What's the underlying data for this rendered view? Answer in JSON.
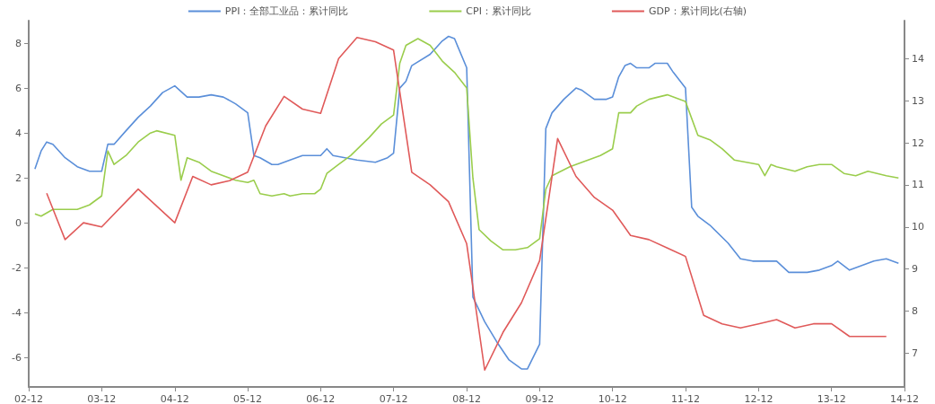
{
  "chart_data": {
    "type": "line",
    "xlim": [
      "2002-12",
      "2014-12"
    ],
    "xticks": [
      {
        "value": "2002-12",
        "label": "02-12"
      },
      {
        "value": "2003-12",
        "label": "03-12"
      },
      {
        "value": "2004-12",
        "label": "04-12"
      },
      {
        "value": "2005-12",
        "label": "05-12"
      },
      {
        "value": "2006-12",
        "label": "06-12"
      },
      {
        "value": "2007-12",
        "label": "07-12"
      },
      {
        "value": "2008-12",
        "label": "08-12"
      },
      {
        "value": "2009-12",
        "label": "09-12"
      },
      {
        "value": "2010-12",
        "label": "10-12"
      },
      {
        "value": "2011-12",
        "label": "11-12"
      },
      {
        "value": "2012-12",
        "label": "12-12"
      },
      {
        "value": "2013-12",
        "label": "13-12"
      },
      {
        "value": "2014-12",
        "label": "14-12"
      }
    ],
    "ylim": [
      -7.3,
      9
    ],
    "yticks": [
      -6,
      -4,
      -2,
      0,
      2,
      4,
      6,
      8
    ],
    "y2lim": [
      6.2,
      14.9
    ],
    "y2ticks": [
      7,
      8,
      9,
      10,
      11,
      12,
      13,
      14
    ],
    "legend": "top",
    "grid": false,
    "marker": "none",
    "line_style": "solid",
    "series": [
      {
        "name": "PPI：全部工业品：累计同比",
        "color": "#5b8fd9",
        "x": [
          "2003-01",
          "2003-02",
          "2003-03",
          "2003-04",
          "2003-06",
          "2003-08",
          "2003-10",
          "2003-12",
          "2004-01",
          "2004-02",
          "2004-04",
          "2004-06",
          "2004-08",
          "2004-10",
          "2004-12",
          "2005-02",
          "2005-04",
          "2005-06",
          "2005-08",
          "2005-10",
          "2005-12",
          "2006-01",
          "2006-02",
          "2006-04",
          "2006-05",
          "2006-07",
          "2006-09",
          "2006-12",
          "2007-01",
          "2007-02",
          "2007-06",
          "2007-09",
          "2007-11",
          "2007-12",
          "2008-01",
          "2008-02",
          "2008-03",
          "2008-06",
          "2008-08",
          "2008-09",
          "2008-10",
          "2008-12",
          "2009-01",
          "2009-03",
          "2009-05",
          "2009-07",
          "2009-09",
          "2009-10",
          "2009-12",
          "2010-01",
          "2010-02",
          "2010-04",
          "2010-06",
          "2010-07",
          "2010-09",
          "2010-11",
          "2010-12",
          "2011-01",
          "2011-02",
          "2011-03",
          "2011-04",
          "2011-06",
          "2011-07",
          "2011-09",
          "2011-10",
          "2011-12",
          "2012-01",
          "2012-02",
          "2012-04",
          "2012-07",
          "2012-09",
          "2012-11",
          "2013-01",
          "2013-03",
          "2013-05",
          "2013-08",
          "2013-10",
          "2013-12",
          "2014-01",
          "2014-03",
          "2014-05",
          "2014-07",
          "2014-09",
          "2014-11"
        ],
        "values": [
          2.4,
          3.2,
          3.6,
          3.5,
          2.9,
          2.5,
          2.3,
          2.3,
          3.5,
          3.5,
          4.1,
          4.7,
          5.2,
          5.8,
          6.1,
          5.6,
          5.6,
          5.7,
          5.6,
          5.3,
          4.9,
          3.0,
          2.9,
          2.6,
          2.6,
          2.8,
          3.0,
          3.0,
          3.3,
          3.0,
          2.8,
          2.7,
          2.9,
          3.1,
          6.0,
          6.3,
          7.0,
          7.5,
          8.1,
          8.3,
          8.2,
          6.9,
          -3.3,
          -4.4,
          -5.3,
          -6.1,
          -6.5,
          -6.5,
          -5.4,
          4.2,
          4.9,
          5.5,
          6.0,
          5.9,
          5.5,
          5.5,
          5.6,
          6.5,
          7.0,
          7.1,
          6.9,
          6.9,
          7.1,
          7.1,
          6.7,
          6.0,
          0.7,
          0.3,
          -0.1,
          -0.9,
          -1.6,
          -1.7,
          -1.7,
          -1.7,
          -2.2,
          -2.2,
          -2.1,
          -1.9,
          -1.7,
          -2.1,
          -1.9,
          -1.7,
          -1.6,
          -1.8
        ]
      },
      {
        "name": "CPI：累计同比",
        "color": "#9acd4c",
        "x": [
          "2003-01",
          "2003-02",
          "2003-04",
          "2003-05",
          "2003-08",
          "2003-10",
          "2003-12",
          "2004-01",
          "2004-02",
          "2004-04",
          "2004-06",
          "2004-08",
          "2004-09",
          "2004-12",
          "2005-01",
          "2005-02",
          "2005-04",
          "2005-06",
          "2005-08",
          "2005-10",
          "2005-12",
          "2006-01",
          "2006-02",
          "2006-04",
          "2006-06",
          "2006-07",
          "2006-09",
          "2006-11",
          "2006-12",
          "2007-01",
          "2007-03",
          "2007-05",
          "2007-08",
          "2007-10",
          "2007-12",
          "2008-01",
          "2008-02",
          "2008-04",
          "2008-06",
          "2008-08",
          "2008-10",
          "2008-12",
          "2009-01",
          "2009-02",
          "2009-04",
          "2009-06",
          "2009-08",
          "2009-10",
          "2009-12",
          "2010-01",
          "2010-02",
          "2010-05",
          "2010-07",
          "2010-10",
          "2010-12",
          "2011-01",
          "2011-03",
          "2011-04",
          "2011-06",
          "2011-09",
          "2011-12",
          "2012-02",
          "2012-04",
          "2012-06",
          "2012-08",
          "2012-10",
          "2012-12",
          "2013-01",
          "2013-02",
          "2013-03",
          "2013-06",
          "2013-08",
          "2013-10",
          "2013-12",
          "2014-02",
          "2014-04",
          "2014-06",
          "2014-09",
          "2014-11"
        ],
        "values": [
          0.4,
          0.3,
          0.6,
          0.6,
          0.6,
          0.8,
          1.2,
          3.2,
          2.6,
          3.0,
          3.6,
          4.0,
          4.1,
          3.9,
          1.9,
          2.9,
          2.7,
          2.3,
          2.1,
          1.9,
          1.8,
          1.9,
          1.3,
          1.2,
          1.3,
          1.2,
          1.3,
          1.3,
          1.5,
          2.2,
          2.6,
          3.0,
          3.8,
          4.4,
          4.8,
          7.1,
          7.9,
          8.2,
          7.9,
          7.2,
          6.7,
          6.0,
          2.0,
          -0.3,
          -0.8,
          -1.2,
          -1.2,
          -1.1,
          -0.7,
          1.5,
          2.1,
          2.5,
          2.7,
          3.0,
          3.3,
          4.9,
          4.9,
          5.2,
          5.5,
          5.7,
          5.4,
          3.9,
          3.7,
          3.3,
          2.8,
          2.7,
          2.6,
          2.1,
          2.6,
          2.5,
          2.3,
          2.5,
          2.6,
          2.6,
          2.2,
          2.1,
          2.3,
          2.1,
          2.0
        ]
      },
      {
        "name": "GDP：累计同比(右轴)",
        "color": "#e05a5a",
        "axis": "y2",
        "x": [
          "2003-03",
          "2003-06",
          "2003-09",
          "2003-12",
          "2004-06",
          "2004-12",
          "2005-03",
          "2005-06",
          "2005-09",
          "2005-12",
          "2006-03",
          "2006-06",
          "2006-09",
          "2006-12",
          "2007-03",
          "2007-06",
          "2007-09",
          "2007-12",
          "2008-03",
          "2008-06",
          "2008-09",
          "2008-12",
          "2009-03",
          "2009-06",
          "2009-09",
          "2009-12",
          "2010-03",
          "2010-06",
          "2010-09",
          "2010-12",
          "2011-03",
          "2011-06",
          "2011-09",
          "2011-12",
          "2012-03",
          "2012-06",
          "2012-09",
          "2012-12",
          "2013-03",
          "2013-06",
          "2013-09",
          "2013-12",
          "2014-03",
          "2014-06",
          "2014-09"
        ],
        "values": [
          10.8,
          9.7,
          10.1,
          10.0,
          10.9,
          10.1,
          11.2,
          11.0,
          11.1,
          11.3,
          12.4,
          13.1,
          12.8,
          12.7,
          14.0,
          14.5,
          14.4,
          14.2,
          11.3,
          11.0,
          10.6,
          9.6,
          6.6,
          7.5,
          8.2,
          9.2,
          12.1,
          11.2,
          10.7,
          10.4,
          9.8,
          9.7,
          9.5,
          9.3,
          7.9,
          7.7,
          7.6,
          7.7,
          7.8,
          7.6,
          7.7,
          7.7,
          7.4,
          7.4,
          7.4
        ]
      }
    ]
  }
}
